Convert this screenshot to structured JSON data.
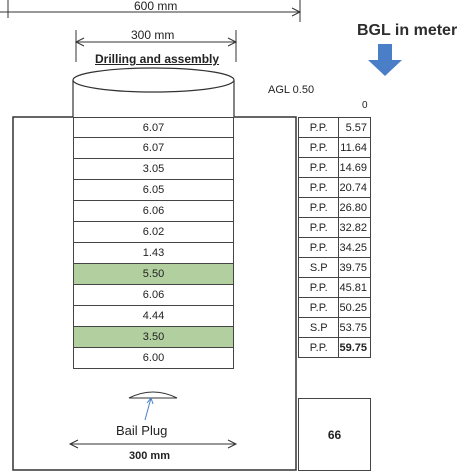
{
  "dims": {
    "outer_width": "600 mm",
    "bore_width": "300 mm",
    "bottom_width": "300 mm"
  },
  "drilling_label": "Drilling and assembly",
  "bgl_heading": "BGL in meter",
  "agl_label": "AGL 0.50",
  "bgl_start": "0",
  "pipes": [
    {
      "length": "6.07",
      "type": "P.P.",
      "depth": "5.57",
      "screen": false
    },
    {
      "length": "6.07",
      "type": "P.P.",
      "depth": "11.64",
      "screen": false
    },
    {
      "length": "3.05",
      "type": "P.P.",
      "depth": "14.69",
      "screen": false
    },
    {
      "length": "6.05",
      "type": "P.P.",
      "depth": "20.74",
      "screen": false
    },
    {
      "length": "6.06",
      "type": "P.P.",
      "depth": "26.80",
      "screen": false
    },
    {
      "length": "6.02",
      "type": "P.P.",
      "depth": "32.82",
      "screen": false
    },
    {
      "length": "1.43",
      "type": "P.P.",
      "depth": "34.25",
      "screen": false
    },
    {
      "length": "5.50",
      "type": "S.P",
      "depth": "39.75",
      "screen": true
    },
    {
      "length": "6.06",
      "type": "P.P.",
      "depth": "45.81",
      "screen": false
    },
    {
      "length": "4.44",
      "type": "P.P.",
      "depth": "50.25",
      "screen": false
    },
    {
      "length": "3.50",
      "type": "S.P",
      "depth": "53.75",
      "screen": true
    },
    {
      "length": "6.00",
      "type": "P.P.",
      "depth": "59.75",
      "screen": false
    }
  ],
  "total_depth": "66",
  "bail_plug_label": "Bail Plug",
  "colors": {
    "arrow": "#4a7fc8",
    "screen_fill": "#b2cfa0"
  }
}
